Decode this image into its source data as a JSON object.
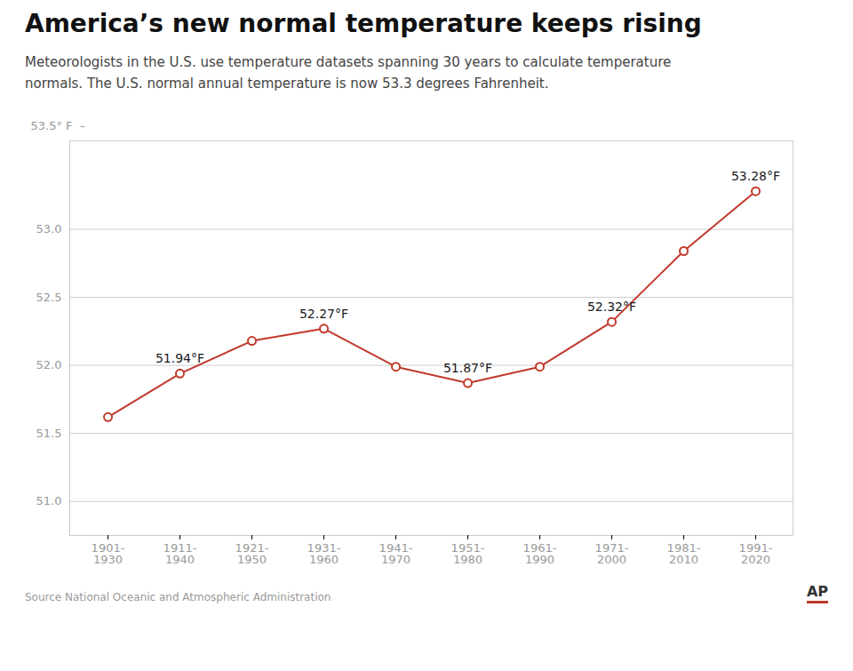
{
  "chart_data": {
    "type": "line",
    "title": "America’s new normal temperature keeps rising",
    "subtitle": "Meteorologists in the U.S. use temperature datasets spanning 30 years to calculate temperature\nnormals. The U.S. normal annual temperature is now 53.3 degrees Fahrenheit.",
    "ylabel": "53.5° F  –",
    "categories": [
      "1901-\n1930",
      "1911-\n1940",
      "1921-\n1950",
      "1931-\n1960",
      "1941-\n1970",
      "1951-\n1980",
      "1961-\n1990",
      "1971-\n2000",
      "1981-\n2010",
      "1991-\n2020"
    ],
    "values": [
      51.62,
      51.94,
      52.18,
      52.27,
      51.99,
      51.87,
      51.99,
      52.32,
      52.84,
      53.28
    ],
    "color": "#c0392b",
    "marker": "circle",
    "annotations": [
      {
        "x": "1911-\n1940",
        "y": 51.94,
        "text": "51.94°F"
      },
      {
        "x": "1931-\n1960",
        "y": 52.27,
        "text": "52.27°F"
      },
      {
        "x": "1951-\n1980",
        "y": 51.87,
        "text": "51.87°F"
      },
      {
        "x": "1971-\n2000",
        "y": 52.32,
        "text": "52.32°F"
      },
      {
        "x": "1991-\n2020",
        "y": 53.28,
        "text": "53.28°F"
      }
    ],
    "ylim": [
      50.75,
      53.65
    ],
    "yticks": [
      {
        "value": 51.0,
        "label": "51.0"
      },
      {
        "value": 51.5,
        "label": "51.5"
      },
      {
        "value": 52.0,
        "label": "52.0"
      },
      {
        "value": 52.5,
        "label": "52.5"
      },
      {
        "value": 53.0,
        "label": "53.0"
      }
    ],
    "grid": true,
    "source": "Source  National Oceanic and Atmospheric Administration",
    "credit": "AP"
  }
}
